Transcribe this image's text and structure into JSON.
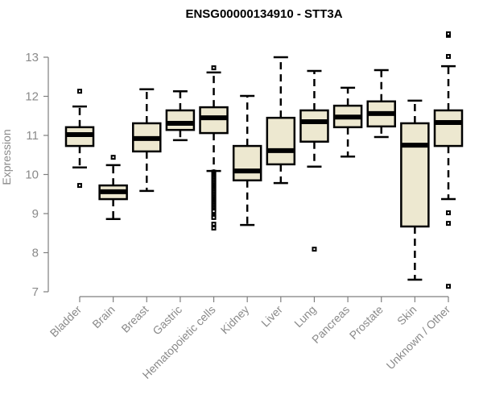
{
  "chart_data": {
    "type": "box",
    "title": "ENSG00000134910 - STT3A",
    "xlabel": "",
    "ylabel": "Expression",
    "ylim": [
      7,
      13
    ],
    "yticks": [
      7,
      8,
      9,
      10,
      11,
      12,
      13
    ],
    "grid": false,
    "legend": "none",
    "colors": {
      "box_fill": "#ede8d0",
      "stroke": "#000000",
      "axis": "#7f7f7f",
      "label": "#8a8a8a"
    },
    "categories": [
      "Bladder",
      "Brain",
      "Breast",
      "Gastric",
      "Hematopoietic cells",
      "Kidney",
      "Liver",
      "Lung",
      "Pancreas",
      "Prostate",
      "Skin",
      "Unknown / Other"
    ],
    "series": [
      {
        "name": "Bladder",
        "whisker_low": 10.18,
        "q1": 10.73,
        "median": 11.02,
        "q3": 11.21,
        "whisker_high": 11.74,
        "outliers": [
          12.13,
          9.72
        ]
      },
      {
        "name": "Brain",
        "whisker_low": 8.86,
        "q1": 9.37,
        "median": 9.56,
        "q3": 9.72,
        "whisker_high": 10.24,
        "outliers": [
          10.44
        ]
      },
      {
        "name": "Breast",
        "whisker_low": 9.58,
        "q1": 10.59,
        "median": 10.92,
        "q3": 11.31,
        "whisker_high": 12.18,
        "outliers": []
      },
      {
        "name": "Gastric",
        "whisker_low": 10.88,
        "q1": 11.14,
        "median": 11.31,
        "q3": 11.64,
        "whisker_high": 12.13,
        "outliers": []
      },
      {
        "name": "Hematopoietic cells",
        "whisker_low": 10.09,
        "q1": 11.06,
        "median": 11.45,
        "q3": 11.72,
        "whisker_high": 12.61,
        "outliers": [
          12.73,
          10.06,
          10.02,
          9.98,
          9.94,
          9.9,
          9.86,
          9.82,
          9.78,
          9.74,
          9.7,
          9.66,
          9.62,
          9.58,
          9.54,
          9.5,
          9.46,
          9.42,
          9.38,
          9.34,
          9.3,
          9.26,
          9.22,
          9.18,
          9.14,
          9.1,
          9.06,
          8.94,
          8.9,
          8.73,
          8.63
        ]
      },
      {
        "name": "Kidney",
        "whisker_low": 8.71,
        "q1": 9.85,
        "median": 10.09,
        "q3": 10.73,
        "whisker_high": 12.01,
        "outliers": []
      },
      {
        "name": "Liver",
        "whisker_low": 9.78,
        "q1": 10.26,
        "median": 10.61,
        "q3": 11.45,
        "whisker_high": 13.0,
        "outliers": []
      },
      {
        "name": "Lung",
        "whisker_low": 10.2,
        "q1": 10.84,
        "median": 11.35,
        "q3": 11.64,
        "whisker_high": 12.65,
        "outliers": [
          8.09
        ]
      },
      {
        "name": "Pancreas",
        "whisker_low": 10.46,
        "q1": 11.21,
        "median": 11.47,
        "q3": 11.76,
        "whisker_high": 12.22,
        "outliers": []
      },
      {
        "name": "Prostate",
        "whisker_low": 10.96,
        "q1": 11.23,
        "median": 11.56,
        "q3": 11.87,
        "whisker_high": 12.67,
        "outliers": []
      },
      {
        "name": "Skin",
        "whisker_low": 7.31,
        "q1": 8.67,
        "median": 10.75,
        "q3": 11.31,
        "whisker_high": 11.89,
        "outliers": []
      },
      {
        "name": "Unknown / Other",
        "whisker_low": 9.37,
        "q1": 10.73,
        "median": 11.33,
        "q3": 11.64,
        "whisker_high": 12.77,
        "outliers": [
          13.58,
          13.56,
          13.6,
          13.02,
          9.02,
          8.75,
          7.14
        ]
      }
    ]
  }
}
